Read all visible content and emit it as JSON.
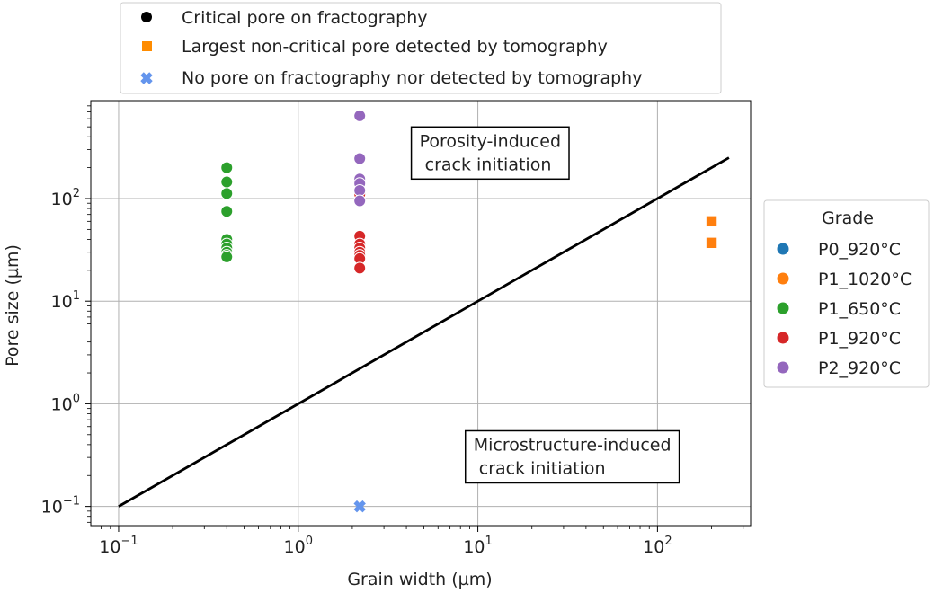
{
  "chart_data": {
    "type": "scatter",
    "xlabel": "Grain width (µm)",
    "ylabel": "Pore size (µm)",
    "xscale": "log",
    "yscale": "log",
    "xlim": [
      0.07,
      330
    ],
    "ylim": [
      0.065,
      900
    ],
    "grid": true,
    "x_ticks": [
      {
        "base": "10",
        "exp": "−1",
        "value": 0.1
      },
      {
        "base": "10",
        "exp": "0",
        "value": 1
      },
      {
        "base": "10",
        "exp": "1",
        "value": 10
      },
      {
        "base": "10",
        "exp": "2",
        "value": 100
      }
    ],
    "y_ticks": [
      {
        "base": "10",
        "exp": "−1",
        "value": 0.1
      },
      {
        "base": "10",
        "exp": "0",
        "value": 1
      },
      {
        "base": "10",
        "exp": "1",
        "value": 10
      },
      {
        "base": "10",
        "exp": "2",
        "value": 100
      }
    ],
    "diagonal_line": {
      "x": [
        0.1,
        250
      ],
      "y": [
        0.1,
        250
      ],
      "color": "#000000"
    },
    "annotations": [
      {
        "id": "porosity",
        "lines": [
          "Porosity-induced",
          " crack initiation"
        ],
        "x": 10,
        "y": 320
      },
      {
        "id": "microstructure",
        "lines": [
          "Microstructure-induced",
          " crack initiation"
        ],
        "x": 20,
        "y": 0.35
      }
    ],
    "marker_legend": {
      "placement": "top",
      "entries": [
        {
          "label": "Critical pore on fractography",
          "marker": "circle",
          "color": "#000000"
        },
        {
          "label": "Largest non-critical pore detected by tomography",
          "marker": "square",
          "color": "#ff8c00"
        },
        {
          "label": "No pore on fractography nor detected by tomography",
          "marker": "x",
          "color": "#6495ed"
        }
      ]
    },
    "grade_legend": {
      "title": "Grade",
      "placement": "right",
      "entries": [
        {
          "label": "P0_920°C",
          "color": "#1f77b4"
        },
        {
          "label": "P1_1020°C",
          "color": "#ff7f0e"
        },
        {
          "label": "P1_650°C",
          "color": "#2ca02c"
        },
        {
          "label": "P1_920°C",
          "color": "#d62728"
        },
        {
          "label": "P2_920°C",
          "color": "#9467bd"
        }
      ]
    },
    "series": [
      {
        "grade": "P1_650°C",
        "marker": "circle",
        "color": "#2ca02c",
        "points": [
          [
            0.4,
            200
          ],
          [
            0.4,
            145
          ],
          [
            0.4,
            112
          ],
          [
            0.4,
            75
          ],
          [
            0.4,
            40
          ],
          [
            0.4,
            36
          ],
          [
            0.4,
            33
          ],
          [
            0.4,
            30
          ],
          [
            0.4,
            28
          ],
          [
            0.4,
            27
          ]
        ]
      },
      {
        "grade": "P1_920°C",
        "marker": "circle",
        "color": "#d62728",
        "points": [
          [
            2.2,
            110
          ],
          [
            2.2,
            43
          ],
          [
            2.2,
            36
          ],
          [
            2.2,
            33
          ],
          [
            2.2,
            30
          ],
          [
            2.2,
            28
          ],
          [
            2.2,
            26
          ],
          [
            2.2,
            21
          ]
        ]
      },
      {
        "grade": "P2_920°C",
        "marker": "circle",
        "color": "#9467bd",
        "points": [
          [
            2.2,
            640
          ],
          [
            2.2,
            245
          ],
          [
            2.2,
            155
          ],
          [
            2.2,
            140
          ],
          [
            2.2,
            120
          ],
          [
            2.2,
            95
          ]
        ]
      },
      {
        "grade": "P1_1020°C",
        "marker": "square",
        "color": "#ff7f0e",
        "points": [
          [
            200,
            60
          ],
          [
            200,
            37
          ]
        ]
      },
      {
        "grade": "P0_920°C",
        "marker": "x",
        "color": "#6495ed",
        "points": [
          [
            2.2,
            0.1
          ]
        ]
      }
    ]
  }
}
